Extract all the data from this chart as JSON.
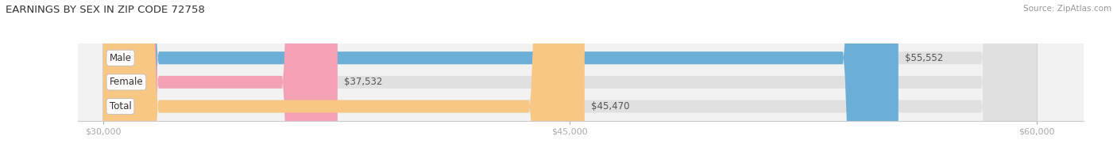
{
  "title": "EARNINGS BY SEX IN ZIP CODE 72758",
  "source": "Source: ZipAtlas.com",
  "categories": [
    "Male",
    "Female",
    "Total"
  ],
  "values": [
    55552,
    37532,
    45470
  ],
  "bar_colors": [
    "#6baed6",
    "#f4a0b5",
    "#f9c784"
  ],
  "bar_bg_color": "#e0e0e0",
  "xmin": 30000,
  "xmax": 60000,
  "xticks": [
    30000,
    45000,
    60000
  ],
  "xtick_labels": [
    "$30,000",
    "$45,000",
    "$60,000"
  ],
  "fig_bg_color": "#ffffff",
  "axes_bg_color": "#f2f2f2",
  "title_fontsize": 9.5,
  "source_fontsize": 7.5,
  "label_fontsize": 8.5,
  "value_fontsize": 8.5,
  "bar_height": 0.52,
  "rounding_size": 1800
}
